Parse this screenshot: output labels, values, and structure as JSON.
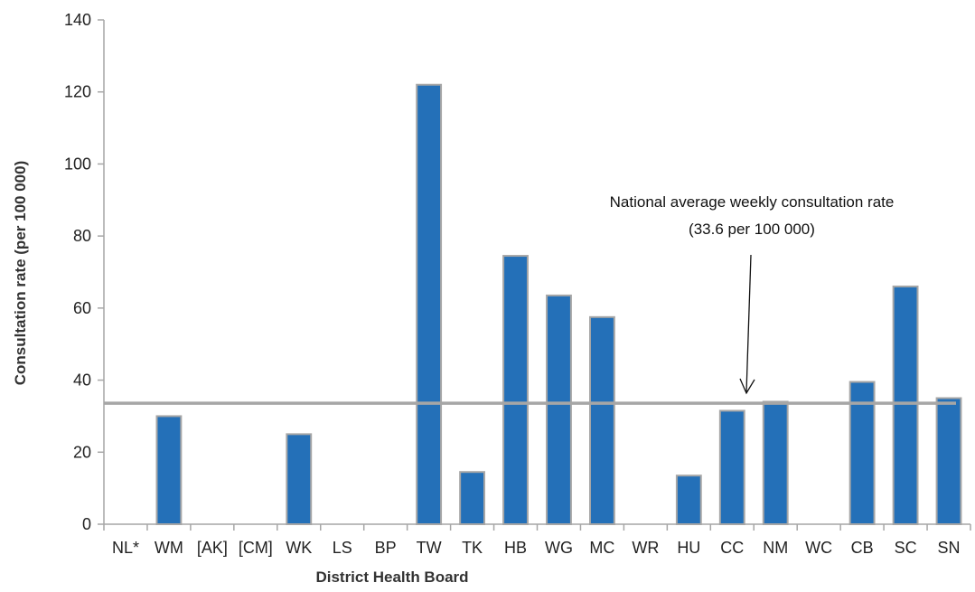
{
  "chart_data": {
    "type": "bar",
    "title": "",
    "xlabel": "District Health Board",
    "ylabel": "Consultation rate (per 100 000)",
    "ylim": [
      0,
      140
    ],
    "yticks": [
      0,
      20,
      40,
      60,
      80,
      100,
      120,
      140
    ],
    "categories": [
      "NL*",
      "WM",
      "[AK]",
      "[CM]",
      "WK",
      "LS",
      "BP",
      "TW",
      "TK",
      "HB",
      "WG",
      "MC",
      "WR",
      "HU",
      "CC",
      "NM",
      "WC",
      "CB",
      "SC",
      "SN"
    ],
    "values": [
      0,
      30,
      0,
      0,
      25,
      0,
      0,
      122,
      14.5,
      74.5,
      63.5,
      57.5,
      0,
      13.5,
      31.5,
      34,
      0,
      39.5,
      66,
      35
    ],
    "reference_line": {
      "value": 33.6,
      "label_line1": "National average weekly consultation rate",
      "label_line2": "(33.6 per 100 000)"
    },
    "bar_color": "#2470B8",
    "bar_border_color": "#A6A6A6",
    "reference_line_color": "#A6A6A6",
    "grid": false,
    "legend": "none"
  }
}
